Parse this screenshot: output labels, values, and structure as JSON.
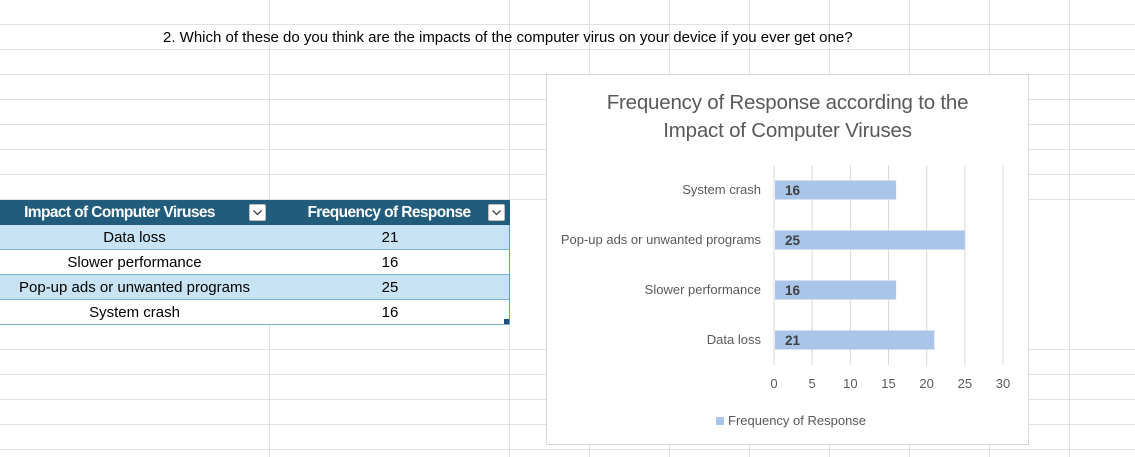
{
  "question": "2. Which of these do you think are the impacts of the computer virus on your device if you ever get one?",
  "table": {
    "headers": [
      "Impact of Computer Viruses",
      "Frequency of Response"
    ],
    "rows": [
      [
        "Data loss",
        "21"
      ],
      [
        "Slower performance",
        "16"
      ],
      [
        "Pop-up ads or unwanted programs",
        "25"
      ],
      [
        "System crash",
        "16"
      ]
    ]
  },
  "chart_data": {
    "type": "bar",
    "orientation": "horizontal",
    "title": "Frequency of Response according to the Impact of Computer Viruses",
    "title_lines": [
      "Frequency of Response according to the",
      "Impact of Computer Viruses"
    ],
    "categories": [
      "Data loss",
      "Slower performance",
      "Pop-up ads or unwanted programs",
      "System crash"
    ],
    "series": [
      {
        "name": "Frequency of Response",
        "values": [
          21,
          16,
          25,
          16
        ]
      }
    ],
    "xlim": [
      0,
      30
    ],
    "xticks": [
      0,
      5,
      10,
      15,
      20,
      25,
      30
    ],
    "xlabel": "",
    "ylabel": "",
    "grid": true,
    "legend": "bottom",
    "data_labels": true,
    "colors": {
      "bar": "#a9c6ea",
      "label": "#404040",
      "grid": "#d9d9d9"
    }
  }
}
